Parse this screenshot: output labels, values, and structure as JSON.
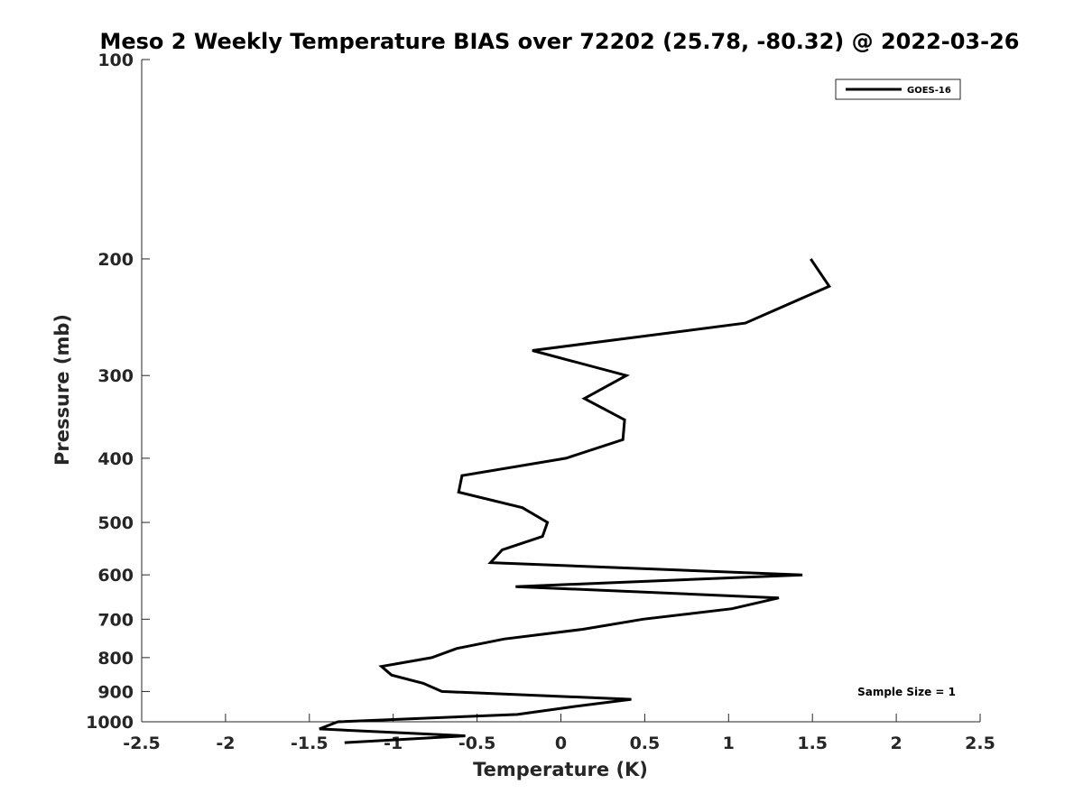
{
  "chart_data": {
    "type": "line",
    "title": "Meso 2 Weekly Temperature BIAS over 72202 (25.78, -80.32) @ 2022-03-26",
    "xlabel": "Temperature (K)",
    "ylabel": "Pressure (mb)",
    "xlim": [
      -2.5,
      2.5
    ],
    "ylim": [
      1000,
      100
    ],
    "yscale": "log",
    "y_reversed": true,
    "grid": false,
    "legend_position": "top-right",
    "x_ticks": [
      "-2.5",
      "-2",
      "-1.5",
      "-1",
      "-0.5",
      "0",
      "0.5",
      "1",
      "1.5",
      "2",
      "2.5"
    ],
    "y_ticks": [
      "100",
      "200",
      "300",
      "400",
      "500",
      "600",
      "700",
      "800",
      "900",
      "1000"
    ],
    "series": [
      {
        "name": "GOES-16",
        "color": "#000000",
        "points": [
          {
            "x": 1.49,
            "y": 200
          },
          {
            "x": 1.6,
            "y": 220
          },
          {
            "x": 1.1,
            "y": 250
          },
          {
            "x": -0.17,
            "y": 275
          },
          {
            "x": 0.39,
            "y": 300
          },
          {
            "x": 0.14,
            "y": 325
          },
          {
            "x": 0.38,
            "y": 350
          },
          {
            "x": 0.37,
            "y": 375
          },
          {
            "x": 0.03,
            "y": 400
          },
          {
            "x": -0.59,
            "y": 425
          },
          {
            "x": -0.61,
            "y": 450
          },
          {
            "x": -0.23,
            "y": 475
          },
          {
            "x": -0.08,
            "y": 500
          },
          {
            "x": -0.11,
            "y": 525
          },
          {
            "x": -0.35,
            "y": 550
          },
          {
            "x": -0.42,
            "y": 575
          },
          {
            "x": 1.44,
            "y": 600
          },
          {
            "x": -0.27,
            "y": 625
          },
          {
            "x": 1.3,
            "y": 650
          },
          {
            "x": 1.02,
            "y": 675
          },
          {
            "x": 0.49,
            "y": 700
          },
          {
            "x": 0.13,
            "y": 725
          },
          {
            "x": -0.34,
            "y": 750
          },
          {
            "x": -0.62,
            "y": 775
          },
          {
            "x": -0.77,
            "y": 800
          },
          {
            "x": -1.07,
            "y": 825
          },
          {
            "x": -1.01,
            "y": 850
          },
          {
            "x": -0.82,
            "y": 875
          },
          {
            "x": -0.71,
            "y": 900
          },
          {
            "x": 0.42,
            "y": 925
          },
          {
            "x": 0.06,
            "y": 950
          },
          {
            "x": -0.26,
            "y": 975
          },
          {
            "x": -1.33,
            "y": 1000
          },
          {
            "x": -1.44,
            "y": 1025
          },
          {
            "x": -0.57,
            "y": 1050
          },
          {
            "x": -1.29,
            "y": 1075
          }
        ]
      }
    ],
    "annotation": "Sample Size = 1"
  }
}
